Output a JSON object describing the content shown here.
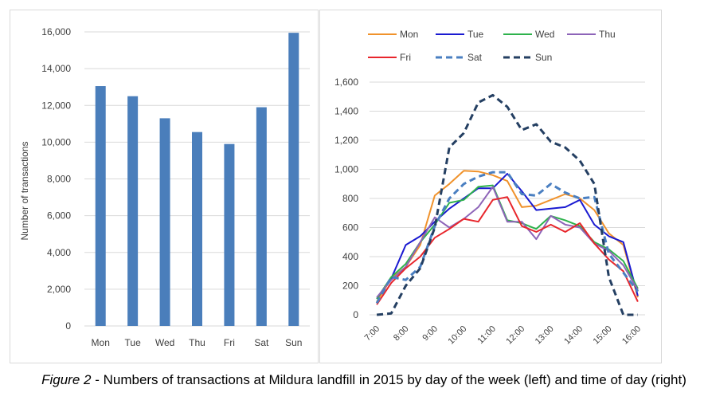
{
  "caption": {
    "figure_label": "Figure 2",
    "text": " - Numbers of transactions at Mildura landfill in 2015 by day of the week (left) and time of day (right)"
  },
  "chart_data": [
    {
      "type": "bar",
      "title": "",
      "xlabel": "",
      "ylabel": "Number of transactions",
      "categories": [
        "Mon",
        "Tue",
        "Wed",
        "Thu",
        "Fri",
        "Sat",
        "Sun"
      ],
      "values": [
        13050,
        12500,
        11300,
        10550,
        9900,
        11900,
        15950
      ],
      "ylim": [
        0,
        16000
      ],
      "yticks": [
        "0",
        "2,000",
        "4,000",
        "6,000",
        "8,000",
        "10,000",
        "12,000",
        "14,000",
        "16,000"
      ],
      "ytick_values": [
        0,
        2000,
        4000,
        6000,
        8000,
        10000,
        12000,
        14000,
        16000
      ],
      "grid": true,
      "bar_color": "#4a7ebb"
    },
    {
      "type": "line",
      "title": "",
      "xlabel": "",
      "ylabel": "",
      "x": [
        7.0,
        7.5,
        8.0,
        8.5,
        9.0,
        9.5,
        10.0,
        10.5,
        11.0,
        11.5,
        12.0,
        12.5,
        13.0,
        13.5,
        14.0,
        14.5,
        15.0,
        15.5,
        16.0
      ],
      "xticks": [
        "7:00",
        "8:00",
        "9:00",
        "10:00",
        "11:00",
        "12:00",
        "13:00",
        "14:00",
        "15:00",
        "16:00"
      ],
      "xtick_values": [
        7,
        8,
        9,
        10,
        11,
        12,
        13,
        14,
        15,
        16
      ],
      "ylim": [
        0,
        1600
      ],
      "yticks": [
        "0",
        "200",
        "400",
        "600",
        "800",
        "1,000",
        "1,200",
        "1,400",
        "1,600"
      ],
      "ytick_values": [
        0,
        200,
        400,
        600,
        800,
        1000,
        1200,
        1400,
        1600
      ],
      "grid": true,
      "legend_position": "top",
      "series": [
        {
          "name": "Mon",
          "color": "#f0922b",
          "dash": "solid",
          "values": [
            90,
            250,
            330,
            480,
            820,
            900,
            990,
            985,
            960,
            920,
            740,
            750,
            790,
            830,
            800,
            720,
            560,
            480,
            120
          ]
        },
        {
          "name": "Tue",
          "color": "#1a1ad1",
          "dash": "solid",
          "values": [
            110,
            250,
            480,
            540,
            640,
            730,
            800,
            870,
            870,
            970,
            850,
            720,
            730,
            740,
            790,
            620,
            540,
            500,
            130
          ]
        },
        {
          "name": "Wed",
          "color": "#2eb24c",
          "dash": "solid",
          "values": [
            110,
            260,
            350,
            500,
            620,
            770,
            790,
            880,
            890,
            650,
            630,
            590,
            680,
            650,
            610,
            500,
            450,
            370,
            180
          ]
        },
        {
          "name": "Thu",
          "color": "#8d64b8",
          "dash": "solid",
          "values": [
            120,
            240,
            330,
            500,
            670,
            600,
            660,
            740,
            880,
            640,
            640,
            520,
            680,
            620,
            600,
            490,
            440,
            340,
            170
          ]
        },
        {
          "name": "Fri",
          "color": "#e8262c",
          "dash": "solid",
          "values": [
            70,
            220,
            320,
            400,
            530,
            590,
            660,
            640,
            790,
            810,
            610,
            570,
            620,
            570,
            630,
            490,
            380,
            300,
            90
          ]
        },
        {
          "name": "Sat",
          "color": "#4a7fc1",
          "dash": "dashed",
          "values": [
            80,
            260,
            240,
            330,
            610,
            800,
            900,
            950,
            980,
            980,
            830,
            820,
            900,
            840,
            800,
            810,
            420,
            290,
            160
          ]
        },
        {
          "name": "Sun",
          "color": "#243f62",
          "dash": "dashed",
          "values": [
            0,
            10,
            200,
            320,
            600,
            1150,
            1250,
            1460,
            1510,
            1430,
            1270,
            1310,
            1190,
            1150,
            1060,
            900,
            260,
            0,
            0
          ]
        }
      ]
    }
  ]
}
